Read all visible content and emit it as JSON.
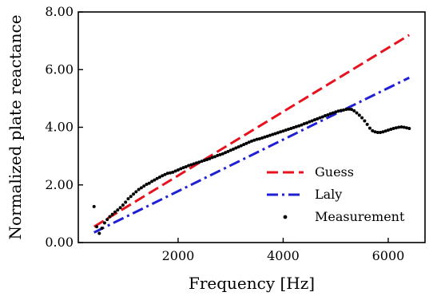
{
  "chart_data": {
    "type": "line",
    "xlabel": "Frequency [Hz]",
    "ylabel": "Normalized plate reactance",
    "xlim": [
      100,
      6700
    ],
    "ylim": [
      0,
      8
    ],
    "xticks": [
      2000,
      4000,
      6000
    ],
    "xtick_labels": [
      "2000",
      "4000",
      "6000"
    ],
    "yticks": [
      0,
      2,
      4,
      6,
      8
    ],
    "ytick_labels": [
      "0.00",
      "2.00",
      "4.00",
      "6.00",
      "8.00"
    ],
    "grid": false,
    "legend_position": "lower-right",
    "series": [
      {
        "name": "Guess",
        "kind": "line",
        "style": "dashed",
        "color": "#e8121e",
        "x": [
          400,
          6400
        ],
        "y": [
          0.55,
          7.2
        ]
      },
      {
        "name": "Laly",
        "kind": "line",
        "style": "dashdot",
        "color": "#1f1fd6",
        "x": [
          400,
          6400
        ],
        "y": [
          0.35,
          5.72
        ]
      },
      {
        "name": "Measurement",
        "kind": "scatter",
        "color": "#000000",
        "x": [
          400,
          450,
          500,
          550,
          600,
          650,
          700,
          750,
          800,
          850,
          900,
          950,
          1000,
          1050,
          1100,
          1150,
          1200,
          1250,
          1300,
          1350,
          1400,
          1450,
          1500,
          1550,
          1600,
          1650,
          1700,
          1750,
          1800,
          1850,
          1900,
          1950,
          2000,
          2050,
          2100,
          2150,
          2200,
          2250,
          2300,
          2350,
          2400,
          2450,
          2500,
          2550,
          2600,
          2650,
          2700,
          2750,
          2800,
          2850,
          2900,
          2950,
          3000,
          3050,
          3100,
          3150,
          3200,
          3250,
          3300,
          3350,
          3400,
          3450,
          3500,
          3550,
          3600,
          3650,
          3700,
          3750,
          3800,
          3850,
          3900,
          3950,
          4000,
          4050,
          4100,
          4150,
          4200,
          4250,
          4300,
          4350,
          4400,
          4450,
          4500,
          4550,
          4600,
          4650,
          4700,
          4750,
          4800,
          4850,
          4900,
          4950,
          5000,
          5050,
          5100,
          5150,
          5200,
          5250,
          5300,
          5350,
          5400,
          5450,
          5500,
          5550,
          5600,
          5650,
          5700,
          5750,
          5800,
          5850,
          5900,
          5950,
          6000,
          6050,
          6100,
          6150,
          6200,
          6250,
          6300,
          6350,
          6400
        ],
        "y": [
          1.25,
          0.55,
          0.32,
          0.5,
          0.68,
          0.8,
          0.9,
          0.98,
          1.06,
          1.13,
          1.21,
          1.3,
          1.4,
          1.52,
          1.6,
          1.68,
          1.76,
          1.84,
          1.9,
          1.96,
          2.02,
          2.06,
          2.12,
          2.17,
          2.22,
          2.27,
          2.32,
          2.36,
          2.4,
          2.42,
          2.44,
          2.48,
          2.52,
          2.56,
          2.6,
          2.63,
          2.67,
          2.7,
          2.73,
          2.76,
          2.79,
          2.82,
          2.85,
          2.88,
          2.91,
          2.95,
          2.98,
          3.02,
          3.05,
          3.08,
          3.12,
          3.16,
          3.2,
          3.24,
          3.28,
          3.32,
          3.36,
          3.4,
          3.44,
          3.48,
          3.52,
          3.55,
          3.58,
          3.6,
          3.63,
          3.66,
          3.69,
          3.72,
          3.75,
          3.78,
          3.81,
          3.84,
          3.87,
          3.9,
          3.93,
          3.96,
          3.99,
          4.02,
          4.05,
          4.08,
          4.12,
          4.15,
          4.19,
          4.22,
          4.26,
          4.29,
          4.33,
          4.36,
          4.4,
          4.43,
          4.47,
          4.5,
          4.53,
          4.56,
          4.58,
          4.6,
          4.62,
          4.63,
          4.62,
          4.57,
          4.5,
          4.42,
          4.33,
          4.22,
          4.1,
          3.97,
          3.88,
          3.84,
          3.82,
          3.82,
          3.84,
          3.87,
          3.9,
          3.93,
          3.96,
          3.98,
          4.0,
          4.01,
          4.0,
          3.98,
          3.96
        ]
      }
    ]
  }
}
